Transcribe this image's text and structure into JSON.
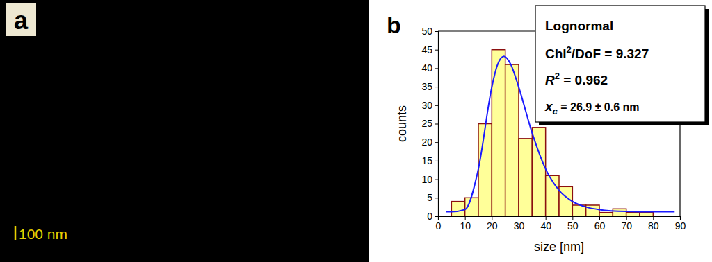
{
  "chart_data": [
    {
      "type": "image",
      "title": "a",
      "annotations": [
        "100 nm"
      ]
    },
    {
      "type": "histogram",
      "title": "b",
      "bins": [
        5,
        10,
        15,
        20,
        25,
        30,
        35,
        40,
        45,
        50,
        55,
        60,
        65,
        70,
        75,
        80
      ],
      "values": [
        4,
        5,
        25,
        45,
        41,
        21,
        24,
        11,
        8,
        3,
        3,
        1,
        2,
        1,
        1
      ],
      "color": "#ffff99",
      "series": [
        {
          "name": "Lognormal",
          "type": "line",
          "color": "#1a1aff",
          "x": [
            3,
            5,
            10,
            15,
            20,
            22,
            24.5,
            27,
            30,
            35,
            40,
            45,
            50,
            55,
            60,
            70,
            80,
            88
          ],
          "values": [
            1.2,
            1.2,
            1.8,
            12.8,
            34.9,
            40.7,
            43.2,
            41.1,
            34.9,
            22.5,
            12.8,
            7.0,
            4.0,
            2.5,
            1.8,
            1.3,
            1.2,
            1.2
          ]
        }
      ],
      "annotations": [
        {
          "text": "Chi",
          "sup": "2",
          "after": "/DoF = 9.327"
        },
        {
          "text": "R",
          "sup": "2",
          "after": " = 0.962"
        },
        {
          "text": "x",
          "sub": "c",
          "after": " = 26.9 ± 0.6 nm"
        }
      ],
      "x_label": "size [nm]",
      "y_label": "counts",
      "xlim": [
        0,
        90
      ],
      "xticks": [
        0,
        10,
        20,
        30,
        40,
        50,
        60,
        70,
        80,
        90
      ],
      "ylim": [
        0,
        50
      ],
      "yticks": [
        0,
        5,
        10,
        15,
        20,
        25,
        30,
        35,
        40,
        45,
        50
      ]
    }
  ]
}
